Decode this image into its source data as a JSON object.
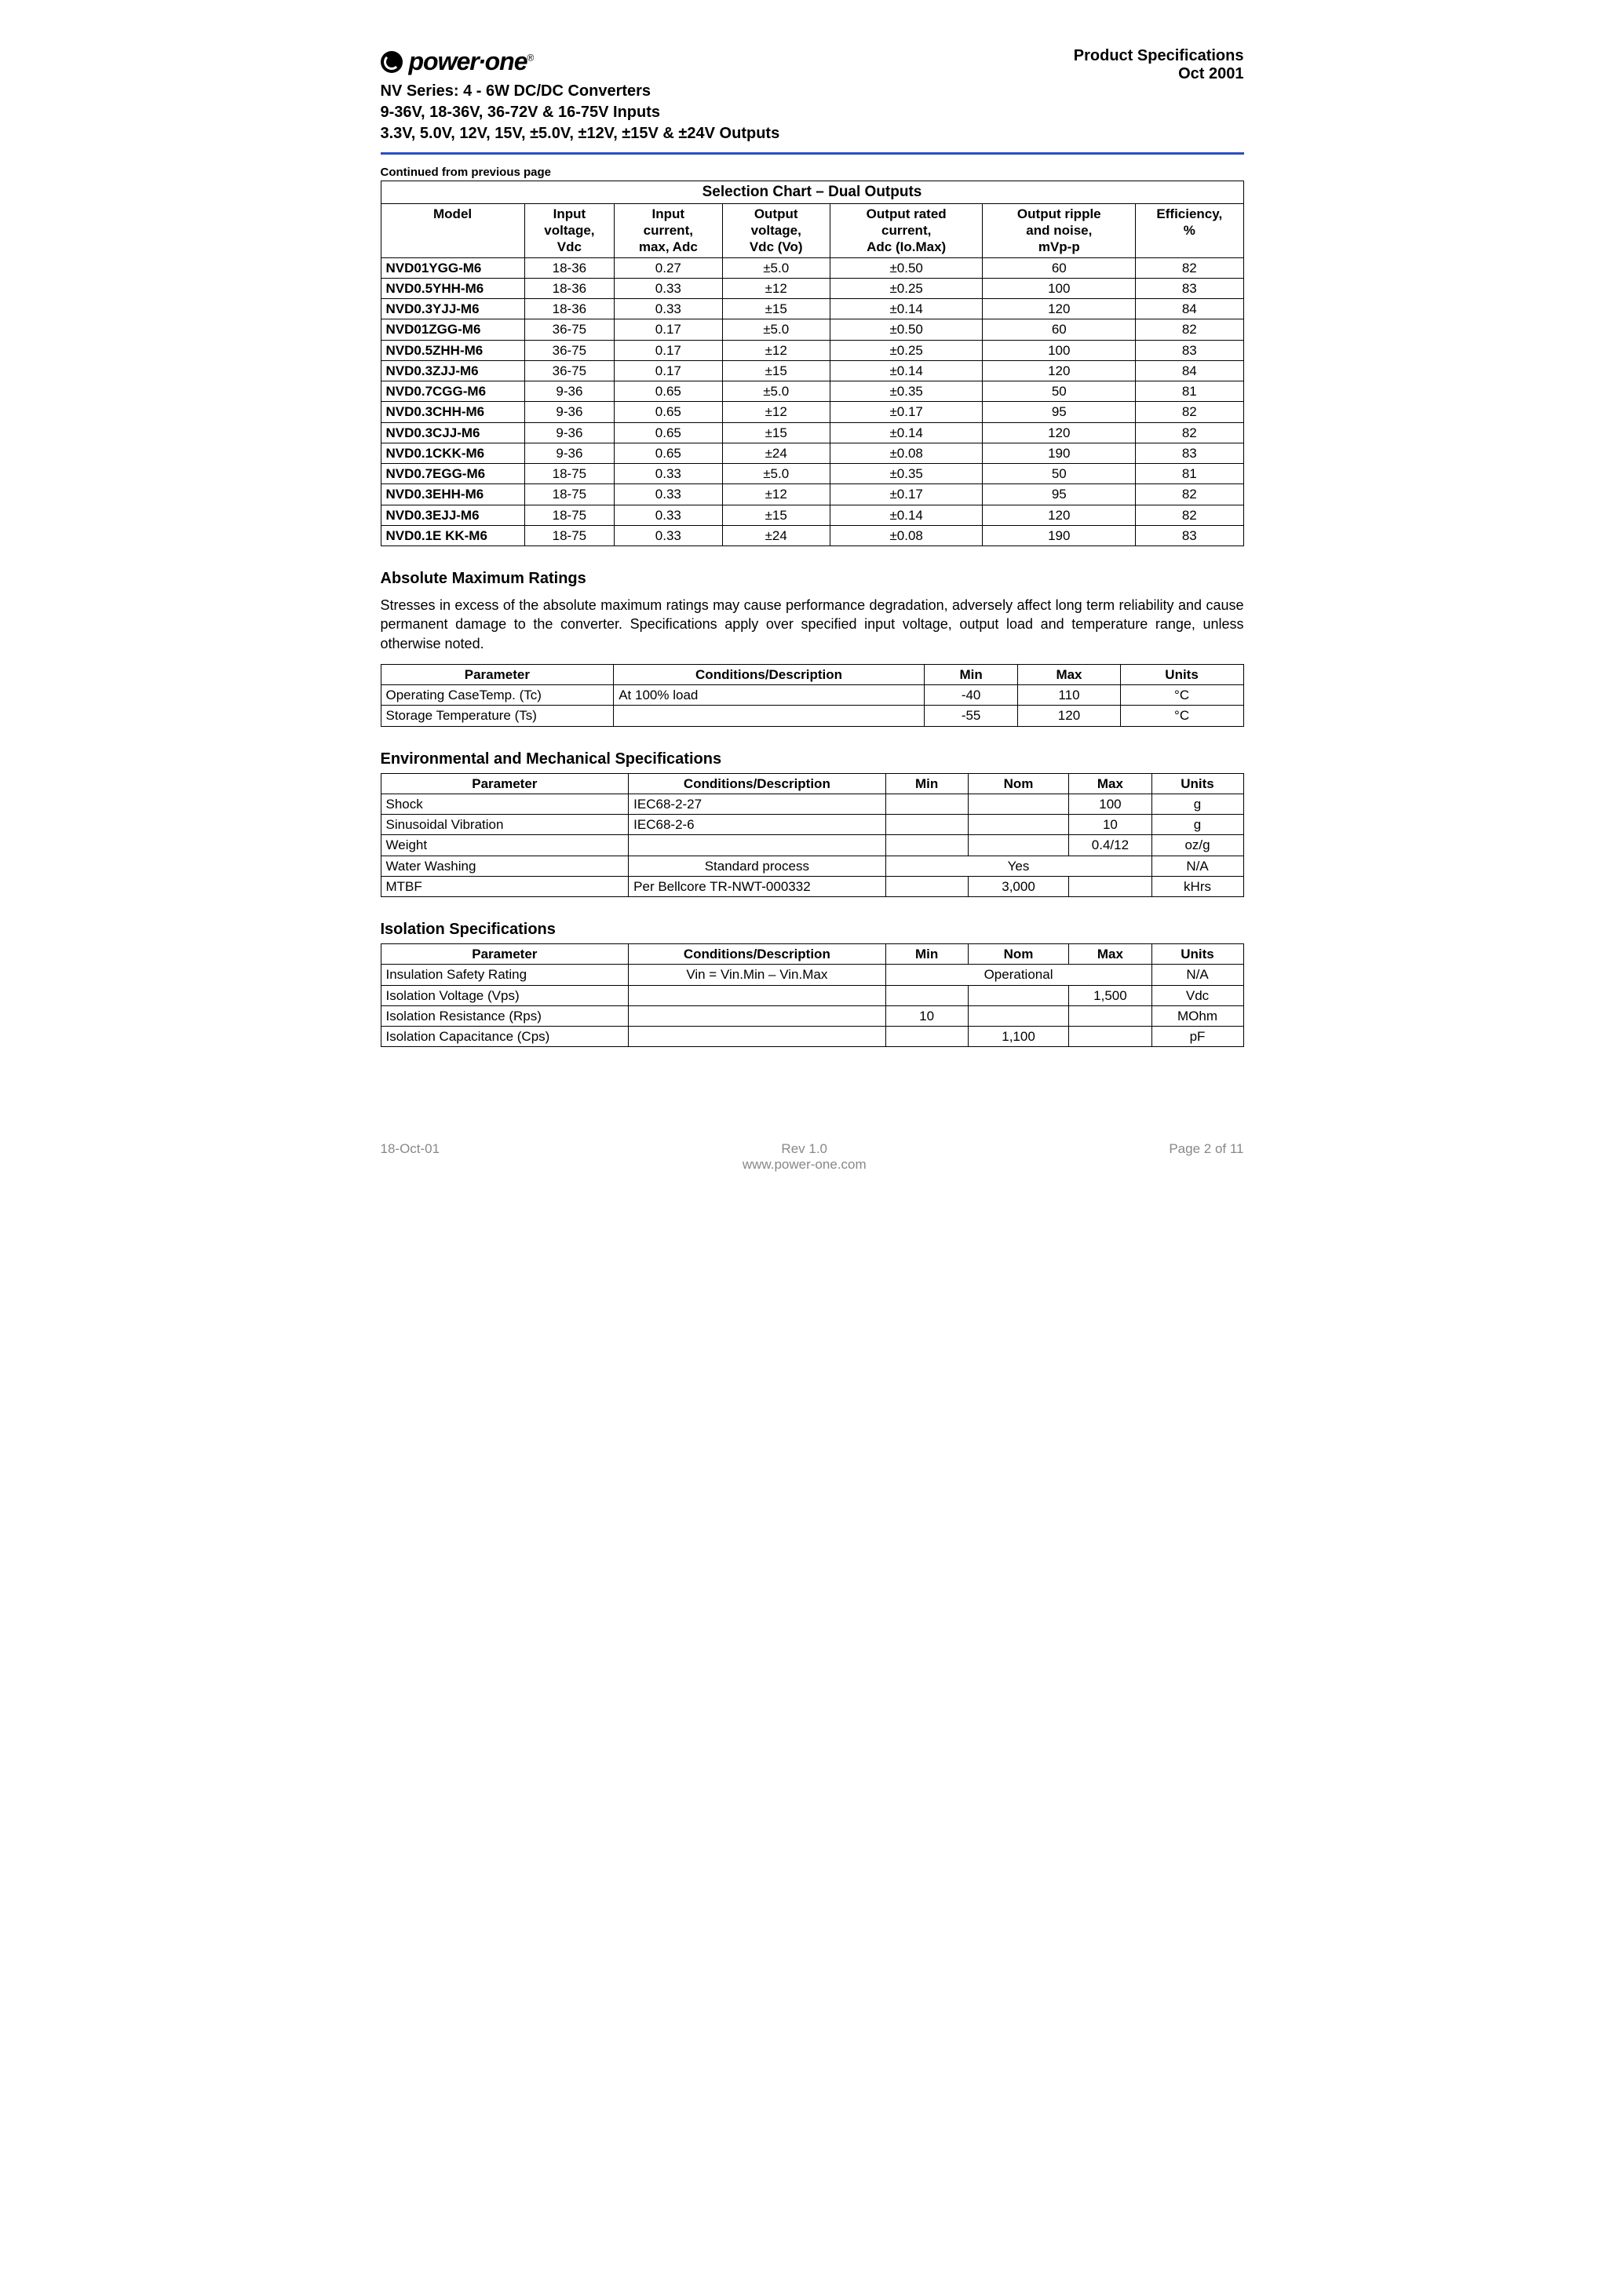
{
  "logo_text": "power∙one",
  "header_right": {
    "l1": "Product Specifications",
    "l2": "Oct 2001"
  },
  "series": {
    "l1": "NV Series: 4 - 6W DC/DC Converters",
    "l2": "9-36V, 18-36V, 36-72V & 16-75V Inputs",
    "l3": "3.3V, 5.0V, 12V, 15V,  ±5.0V, ±12V, ±15V & ±24V Outputs"
  },
  "continued_note": "Continued from previous page",
  "selection_chart": {
    "title": "Selection Chart – Dual Outputs",
    "headers": [
      "Model",
      "Input\nvoltage,\nVdc",
      "Input\ncurrent,\nmax, Adc",
      "Output\nvoltage,\nVdc (Vo)",
      "Output rated\ncurrent,\nAdc (Io.Max)",
      "Output ripple\nand noise,\nmVp-p",
      "Efficiency,\n%"
    ],
    "rows": [
      [
        "NVD01YGG-M6",
        "18-36",
        "0.27",
        "±5.0",
        "±0.50",
        "60",
        "82"
      ],
      [
        "NVD0.5YHH-M6",
        "18-36",
        "0.33",
        "±12",
        "±0.25",
        "100",
        "83"
      ],
      [
        "NVD0.3YJJ-M6",
        "18-36",
        "0.33",
        "±15",
        "±0.14",
        "120",
        "84"
      ],
      [
        "NVD01ZGG-M6",
        "36-75",
        "0.17",
        "±5.0",
        "±0.50",
        "60",
        "82"
      ],
      [
        "NVD0.5ZHH-M6",
        "36-75",
        "0.17",
        "±12",
        "±0.25",
        "100",
        "83"
      ],
      [
        "NVD0.3ZJJ-M6",
        "36-75",
        "0.17",
        "±15",
        "±0.14",
        "120",
        "84"
      ],
      [
        "NVD0.7CGG-M6",
        "9-36",
        "0.65",
        "±5.0",
        "±0.35",
        "50",
        "81"
      ],
      [
        "NVD0.3CHH-M6",
        "9-36",
        "0.65",
        "±12",
        "±0.17",
        "95",
        "82"
      ],
      [
        "NVD0.3CJJ-M6",
        "9-36",
        "0.65",
        "±15",
        "±0.14",
        "120",
        "82"
      ],
      [
        "NVD0.1CKK-M6",
        "9-36",
        "0.65",
        "±24",
        "±0.08",
        "190",
        "83"
      ],
      [
        "NVD0.7EGG-M6",
        "18-75",
        "0.33",
        "±5.0",
        "±0.35",
        "50",
        "81"
      ],
      [
        "NVD0.3EHH-M6",
        "18-75",
        "0.33",
        "±12",
        "±0.17",
        "95",
        "82"
      ],
      [
        "NVD0.3EJJ-M6",
        "18-75",
        "0.33",
        "±15",
        "±0.14",
        "120",
        "82"
      ],
      [
        "NVD0.1E KK-M6",
        "18-75",
        "0.33",
        "±24",
        "±0.08",
        "190",
        "83"
      ]
    ]
  },
  "abs_max": {
    "title": "Absolute Maximum Ratings",
    "para": "Stresses in excess of the absolute maximum ratings may cause performance degradation, adversely affect long term reliability and cause permanent damage to the converter.  Specifications apply over specified input voltage, output load and temperature range, unless otherwise noted.",
    "headers": [
      "Parameter",
      "Conditions/Description",
      "Min",
      "Max",
      "Units"
    ],
    "rows": [
      [
        "Operating CaseTemp. (Tc)",
        "At 100% load",
        "-40",
        "110",
        "°C"
      ],
      [
        "Storage Temperature (Ts)",
        "",
        "-55",
        "120",
        "°C"
      ]
    ]
  },
  "env_mech": {
    "title": "Environmental and Mechanical Specifications",
    "headers": [
      "Parameter",
      "Conditions/Description",
      "Min",
      "Nom",
      "Max",
      "Units"
    ],
    "rows": [
      {
        "cells": [
          "Shock",
          "IEC68-2-27",
          "",
          "",
          "100",
          "g"
        ]
      },
      {
        "cells": [
          "Sinusoidal Vibration",
          "IEC68-2-6",
          "",
          "",
          "10",
          "g"
        ]
      },
      {
        "cells": [
          "Weight",
          "",
          "",
          "",
          "0.4/12",
          "oz/g"
        ]
      },
      {
        "span": true,
        "cells": [
          "Water Washing",
          "Standard process",
          "Yes",
          "N/A"
        ]
      },
      {
        "cells": [
          "MTBF",
          "Per Bellcore TR-NWT-000332",
          "",
          "3,000",
          "",
          "kHrs"
        ]
      }
    ]
  },
  "isolation": {
    "title": "Isolation Specifications",
    "headers": [
      "Parameter",
      "Conditions/Description",
      "Min",
      "Nom",
      "Max",
      "Units"
    ],
    "rows": [
      {
        "span": true,
        "cells": [
          "Insulation Safety Rating",
          "Vin = Vin.Min – Vin.Max",
          "Operational",
          "N/A"
        ]
      },
      {
        "cells": [
          "Isolation Voltage (Vps)",
          "",
          "",
          "",
          "1,500",
          "Vdc"
        ]
      },
      {
        "cells": [
          "Isolation Resistance (Rps)",
          "",
          "10",
          "",
          "",
          "MOhm"
        ]
      },
      {
        "cells": [
          "Isolation Capacitance (Cps)",
          "",
          "",
          "1,100",
          "",
          "pF"
        ]
      }
    ]
  },
  "footer": {
    "left": "18-Oct-01",
    "center_l1": "Rev 1.0",
    "center_l2": "www.power-one.com",
    "right": "Page 2 of 11"
  }
}
